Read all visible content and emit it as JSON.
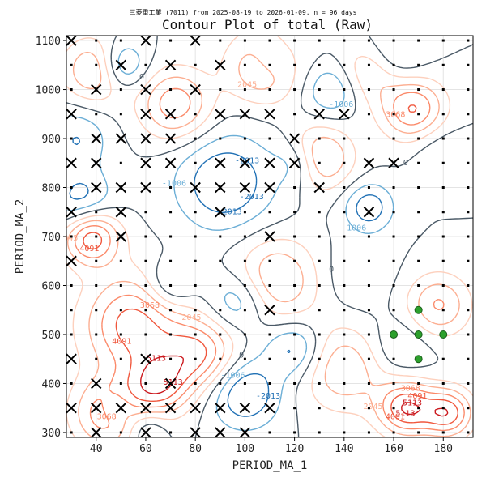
{
  "chart_data": {
    "type": "contour",
    "title": "Contour Plot of total (Raw)",
    "subtitle": "三菱重工業 (7011) from 2025-08-19 to 2026-01-09, n = 96 days",
    "xlabel": "PERIOD_MA_1",
    "ylabel": "PERIOD_MA_2",
    "xlim": [
      28,
      192
    ],
    "ylim": [
      290,
      1110
    ],
    "xticks": [
      40,
      60,
      80,
      100,
      120,
      140,
      160,
      180
    ],
    "yticks": [
      300,
      400,
      500,
      600,
      700,
      800,
      900,
      1000,
      1100
    ],
    "grid": true,
    "contour_levels": [
      -3019,
      -2013,
      -1006,
      0,
      1023,
      2045,
      3068,
      4091,
      5113
    ],
    "contour_label_values": [
      "-3019",
      "-2013",
      "-1006",
      "0",
      "2045",
      "3068",
      "4091",
      "5113"
    ],
    "hotspots": [
      {
        "x": 38,
        "y": 700,
        "v": 5100,
        "s": 8
      },
      {
        "x": 55,
        "y": 520,
        "v": 4600,
        "s": 14
      },
      {
        "x": 45,
        "y": 340,
        "v": 4200,
        "s": 10
      },
      {
        "x": 65,
        "y": 395,
        "v": 4300,
        "s": 9
      },
      {
        "x": 82,
        "y": 460,
        "v": 4000,
        "s": 10
      },
      {
        "x": 112,
        "y": 610,
        "v": 3400,
        "s": 12
      },
      {
        "x": 130,
        "y": 860,
        "v": 3900,
        "s": 9
      },
      {
        "x": 108,
        "y": 1050,
        "v": 4300,
        "s": 10
      },
      {
        "x": 152,
        "y": 1040,
        "v": 3500,
        "s": 9
      },
      {
        "x": 168,
        "y": 960,
        "v": 4200,
        "s": 9
      },
      {
        "x": 165,
        "y": 350,
        "v": 5000,
        "s": 8
      },
      {
        "x": 182,
        "y": 340,
        "v": 4600,
        "s": 7
      },
      {
        "x": 72,
        "y": 970,
        "v": 3800,
        "s": 10
      },
      {
        "x": 140,
        "y": 430,
        "v": 3000,
        "s": 12
      },
      {
        "x": 178,
        "y": 560,
        "v": 3200,
        "s": 9
      },
      {
        "x": 40,
        "y": 1040,
        "v": 3600,
        "s": 9
      },
      {
        "x": 50,
        "y": 1050,
        "v": -3200,
        "s": 7
      },
      {
        "x": 92,
        "y": 810,
        "v": -3019,
        "s": 14
      },
      {
        "x": 100,
        "y": 380,
        "v": -3200,
        "s": 10
      },
      {
        "x": 98,
        "y": 570,
        "v": -2500,
        "s": 9
      },
      {
        "x": 120,
        "y": 470,
        "v": -2600,
        "s": 8
      },
      {
        "x": 122,
        "y": 850,
        "v": -2300,
        "s": 7
      },
      {
        "x": 150,
        "y": 760,
        "v": -2700,
        "s": 7
      },
      {
        "x": 110,
        "y": 1060,
        "v": -2500,
        "s": 7
      },
      {
        "x": 158,
        "y": 1060,
        "v": -2800,
        "s": 9
      },
      {
        "x": 34,
        "y": 770,
        "v": -2700,
        "s": 9
      },
      {
        "x": 32,
        "y": 900,
        "v": -2013,
        "s": 9
      },
      {
        "x": 70,
        "y": 600,
        "v": -2100,
        "s": 7
      },
      {
        "x": 48,
        "y": 350,
        "v": -2100,
        "s": 5
      },
      {
        "x": 135,
        "y": 1000,
        "v": -2200,
        "s": 8
      },
      {
        "x": 60,
        "y": 310,
        "v": -2000,
        "s": 6
      },
      {
        "x": 162,
        "y": 470,
        "v": -1400,
        "s": 9
      },
      {
        "x": 178,
        "y": 880,
        "v": -1000,
        "s": 8
      },
      {
        "x": 145,
        "y": 620,
        "v": -900,
        "s": 10
      }
    ],
    "grid_points": [
      {
        "x": 30,
        "y": 1100,
        "m": "x"
      },
      {
        "x": 50,
        "y": 1050,
        "m": "x"
      },
      {
        "x": 60,
        "y": 1100,
        "m": "x"
      },
      {
        "x": 70,
        "y": 1050,
        "m": "x"
      },
      {
        "x": 80,
        "y": 1100,
        "m": "x"
      },
      {
        "x": 90,
        "y": 1050,
        "m": "x"
      },
      {
        "x": 40,
        "y": 1000,
        "m": "x"
      },
      {
        "x": 60,
        "y": 1000,
        "m": "x"
      },
      {
        "x": 60,
        "y": 950,
        "m": "x"
      },
      {
        "x": 70,
        "y": 950,
        "m": "x"
      },
      {
        "x": 80,
        "y": 1000,
        "m": "x"
      },
      {
        "x": 90,
        "y": 950,
        "m": "x"
      },
      {
        "x": 100,
        "y": 950,
        "m": "x"
      },
      {
        "x": 110,
        "y": 950,
        "m": "x"
      },
      {
        "x": 130,
        "y": 950,
        "m": "x"
      },
      {
        "x": 140,
        "y": 950,
        "m": "x"
      },
      {
        "x": 30,
        "y": 950,
        "m": "x"
      },
      {
        "x": 40,
        "y": 900,
        "m": "x"
      },
      {
        "x": 50,
        "y": 900,
        "m": "x"
      },
      {
        "x": 60,
        "y": 900,
        "m": "x"
      },
      {
        "x": 70,
        "y": 900,
        "m": "x"
      },
      {
        "x": 120,
        "y": 900,
        "m": "x"
      },
      {
        "x": 30,
        "y": 850,
        "m": "x"
      },
      {
        "x": 40,
        "y": 850,
        "m": "x"
      },
      {
        "x": 60,
        "y": 850,
        "m": "x"
      },
      {
        "x": 70,
        "y": 850,
        "m": "x"
      },
      {
        "x": 90,
        "y": 850,
        "m": "x"
      },
      {
        "x": 100,
        "y": 850,
        "m": "x"
      },
      {
        "x": 110,
        "y": 850,
        "m": "x"
      },
      {
        "x": 120,
        "y": 850,
        "m": "x"
      },
      {
        "x": 150,
        "y": 850,
        "m": "x"
      },
      {
        "x": 160,
        "y": 850,
        "m": "x"
      },
      {
        "x": 40,
        "y": 800,
        "m": "x"
      },
      {
        "x": 50,
        "y": 800,
        "m": "x"
      },
      {
        "x": 60,
        "y": 800,
        "m": "x"
      },
      {
        "x": 80,
        "y": 800,
        "m": "x"
      },
      {
        "x": 90,
        "y": 800,
        "m": "x"
      },
      {
        "x": 100,
        "y": 800,
        "m": "x"
      },
      {
        "x": 110,
        "y": 800,
        "m": "x"
      },
      {
        "x": 130,
        "y": 800,
        "m": "x"
      },
      {
        "x": 30,
        "y": 750,
        "m": "x"
      },
      {
        "x": 50,
        "y": 750,
        "m": "x"
      },
      {
        "x": 90,
        "y": 750,
        "m": "x"
      },
      {
        "x": 150,
        "y": 750,
        "m": "x"
      },
      {
        "x": 50,
        "y": 700,
        "m": "x"
      },
      {
        "x": 110,
        "y": 700,
        "m": "x"
      },
      {
        "x": 30,
        "y": 650,
        "m": "x"
      },
      {
        "x": 110,
        "y": 550,
        "m": "x"
      },
      {
        "x": 30,
        "y": 450,
        "m": "x"
      },
      {
        "x": 60,
        "y": 450,
        "m": "x"
      },
      {
        "x": 40,
        "y": 400,
        "m": "x"
      },
      {
        "x": 70,
        "y": 400,
        "m": "x"
      },
      {
        "x": 30,
        "y": 350,
        "m": "x"
      },
      {
        "x": 40,
        "y": 350,
        "m": "x"
      },
      {
        "x": 50,
        "y": 350,
        "m": "x"
      },
      {
        "x": 60,
        "y": 350,
        "m": "x"
      },
      {
        "x": 70,
        "y": 350,
        "m": "x"
      },
      {
        "x": 80,
        "y": 350,
        "m": "x"
      },
      {
        "x": 90,
        "y": 350,
        "m": "x"
      },
      {
        "x": 100,
        "y": 350,
        "m": "x"
      },
      {
        "x": 110,
        "y": 350,
        "m": "x"
      },
      {
        "x": 40,
        "y": 300,
        "m": "x"
      },
      {
        "x": 60,
        "y": 300,
        "m": "x"
      },
      {
        "x": 80,
        "y": 300,
        "m": "x"
      },
      {
        "x": 90,
        "y": 300,
        "m": "x"
      },
      {
        "x": 100,
        "y": 300,
        "m": "x"
      },
      {
        "x": 170,
        "y": 550,
        "m": "g"
      },
      {
        "x": 160,
        "y": 500,
        "m": "g"
      },
      {
        "x": 170,
        "y": 500,
        "m": "g"
      },
      {
        "x": 180,
        "y": 500,
        "m": "g"
      },
      {
        "x": 170,
        "y": 450,
        "m": "g"
      }
    ],
    "dot_step": 10
  }
}
